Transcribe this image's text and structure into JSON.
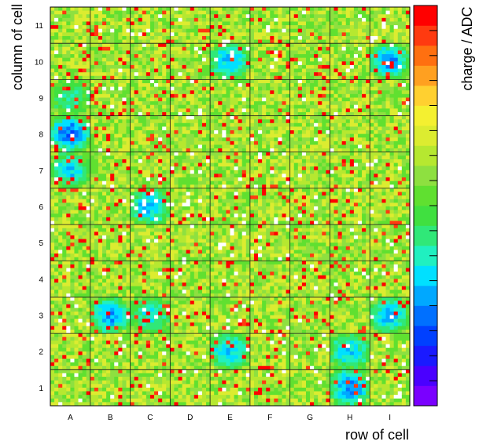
{
  "chart_data": {
    "type": "heatmap",
    "title": "",
    "xlabel": "row of cell",
    "ylabel": "column of cell",
    "colorbar_label": "charge / ADC",
    "x_categories": [
      "A",
      "B",
      "C",
      "D",
      "E",
      "F",
      "G",
      "H",
      "I"
    ],
    "y_categories": [
      "1",
      "2",
      "3",
      "4",
      "5",
      "6",
      "7",
      "8",
      "9",
      "10",
      "11"
    ],
    "pixels_per_cell": 10,
    "grid": true,
    "colorbar_ticks": 16,
    "colorscale": [
      "#7a00ff",
      "#4a00ff",
      "#1a1aff",
      "#0040ff",
      "#0070ff",
      "#00a8ff",
      "#00e0ff",
      "#20f0c0",
      "#30e878",
      "#40e040",
      "#60e030",
      "#8ee040",
      "#b6e830",
      "#dcec30",
      "#f4f030",
      "#ffd030",
      "#ffa020",
      "#ff7010",
      "#ff3a10",
      "#ff0000"
    ],
    "baseline_level": 11.5,
    "low_charge_regions": [
      {
        "row": "E",
        "column": "10",
        "level": 5.5
      },
      {
        "row": "I",
        "column": "10",
        "level": 5.0
      },
      {
        "row": "A",
        "column": "9",
        "level": 7.5
      },
      {
        "row": "A",
        "column": "8",
        "level": 4.0
      },
      {
        "row": "A",
        "column": "7",
        "level": 6.0
      },
      {
        "row": "C",
        "column": "6",
        "level": 5.5
      },
      {
        "row": "B",
        "column": "3",
        "level": 5.0
      },
      {
        "row": "C",
        "column": "3",
        "level": 6.5
      },
      {
        "row": "I",
        "column": "3",
        "level": 5.5
      },
      {
        "row": "E",
        "column": "2",
        "level": 5.5
      },
      {
        "row": "H",
        "column": "2",
        "level": 6.0
      },
      {
        "row": "H",
        "column": "1",
        "level": 4.5
      }
    ]
  }
}
